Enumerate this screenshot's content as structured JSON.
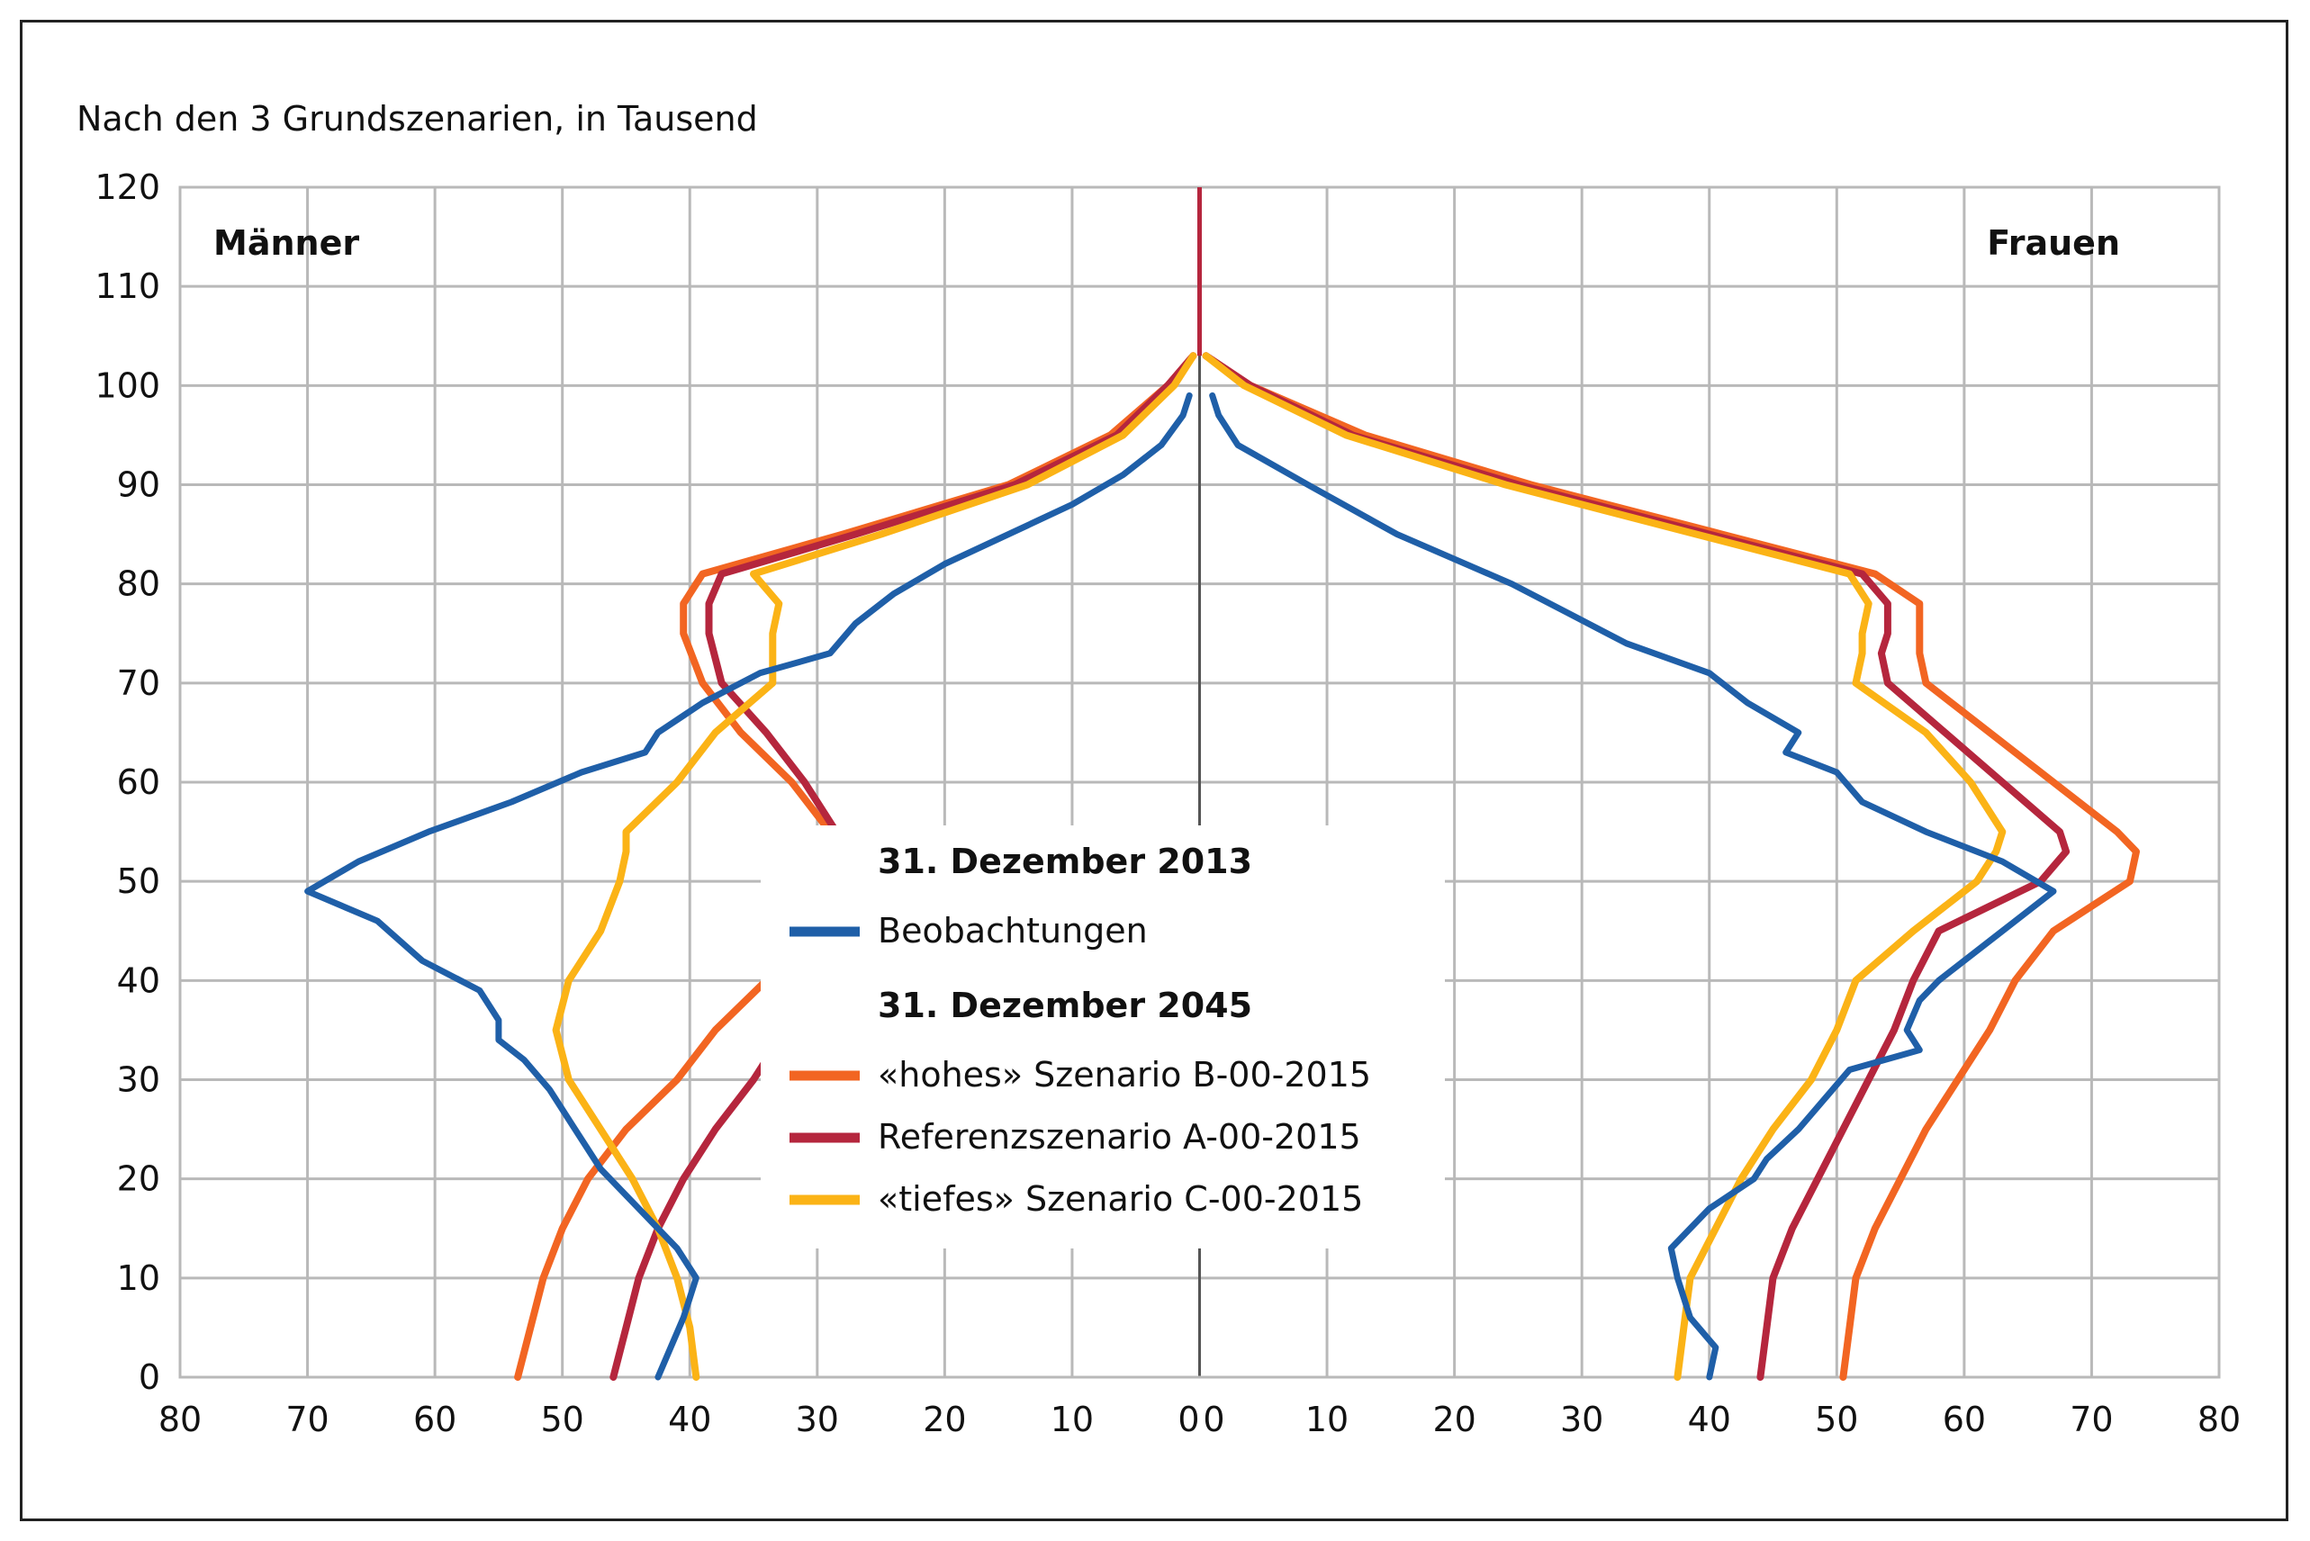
{
  "chart_data": {
    "type": "line",
    "subtitle": "Nach den 3 Grundszenarien, in Tausend",
    "left_label": "Männer",
    "right_label": "Frauen",
    "y_axis": {
      "min": 0,
      "max": 120,
      "step": 10,
      "ticks": [
        0,
        10,
        20,
        30,
        40,
        50,
        60,
        70,
        80,
        90,
        100,
        110,
        120
      ]
    },
    "x_axis": {
      "min": -80,
      "max": 80,
      "step": 10,
      "tick_labels": [
        "80",
        "70",
        "60",
        "50",
        "40",
        "30",
        "20",
        "10",
        "0",
        "0",
        "10",
        "20",
        "30",
        "40",
        "50",
        "60",
        "70",
        "80"
      ]
    },
    "grid": true,
    "legend": {
      "placement": "center",
      "groups": [
        {
          "heading": "31. Dezember 2013",
          "items": [
            {
              "key": "obs",
              "label": "Beobachtungen"
            }
          ]
        },
        {
          "heading": "31. Dezember 2045",
          "items": [
            {
              "key": "high",
              "label": "«hohes» Szenario B-00-2015"
            },
            {
              "key": "ref",
              "label": "Referenzszenario A-00-2015"
            },
            {
              "key": "low",
              "label": "«tiefes» Szenario C-00-2015"
            }
          ]
        }
      ]
    },
    "colors": {
      "obs": "#1f5fa8",
      "high": "#f26522",
      "ref": "#b5263d",
      "low": "#fbb316",
      "grid": "#b9b9b9",
      "axis": "#555555"
    },
    "series": [
      {
        "key": "high",
        "name": "«hohes» Szenario B-00-2015",
        "men": [
          [
            0,
            53.5
          ],
          [
            5,
            52.5
          ],
          [
            10,
            51.5
          ],
          [
            15,
            50
          ],
          [
            20,
            48
          ],
          [
            25,
            45
          ],
          [
            30,
            41
          ],
          [
            35,
            38
          ],
          [
            40,
            34
          ],
          [
            45,
            31
          ],
          [
            50,
            29
          ],
          [
            53,
            28
          ],
          [
            55,
            29
          ],
          [
            60,
            32
          ],
          [
            65,
            36
          ],
          [
            70,
            39
          ],
          [
            75,
            40.5
          ],
          [
            78,
            40.5
          ],
          [
            81,
            39
          ],
          [
            85,
            28
          ],
          [
            90,
            15
          ],
          [
            95,
            7
          ],
          [
            100,
            2.5
          ],
          [
            103,
            0.5
          ]
        ],
        "women": [
          [
            0,
            50.5
          ],
          [
            5,
            51
          ],
          [
            10,
            51.5
          ],
          [
            15,
            53
          ],
          [
            20,
            55
          ],
          [
            25,
            57
          ],
          [
            30,
            59.5
          ],
          [
            35,
            62
          ],
          [
            40,
            64
          ],
          [
            45,
            67
          ],
          [
            50,
            73
          ],
          [
            53,
            73.5
          ],
          [
            55,
            72
          ],
          [
            60,
            67
          ],
          [
            65,
            62
          ],
          [
            70,
            57
          ],
          [
            73,
            56.5
          ],
          [
            75,
            56.5
          ],
          [
            78,
            56.5
          ],
          [
            81,
            53
          ],
          [
            85,
            41
          ],
          [
            90,
            26
          ],
          [
            95,
            13
          ],
          [
            100,
            4
          ],
          [
            103,
            0.5
          ]
        ]
      },
      {
        "key": "ref",
        "name": "Referenzszenario A-00-2015",
        "men": [
          [
            0,
            46
          ],
          [
            5,
            45
          ],
          [
            10,
            44
          ],
          [
            15,
            42.5
          ],
          [
            20,
            40.5
          ],
          [
            25,
            38
          ],
          [
            30,
            35
          ],
          [
            35,
            32.5
          ],
          [
            40,
            30.5
          ],
          [
            45,
            29
          ],
          [
            50,
            28.5
          ],
          [
            53,
            28
          ],
          [
            55,
            28.5
          ],
          [
            60,
            31
          ],
          [
            65,
            34
          ],
          [
            70,
            37.5
          ],
          [
            75,
            38.5
          ],
          [
            78,
            38.5
          ],
          [
            81,
            37.5
          ],
          [
            85,
            27
          ],
          [
            90,
            14.5
          ],
          [
            95,
            6.5
          ],
          [
            100,
            2.5
          ],
          [
            103,
            0.5
          ]
        ],
        "women": [
          [
            0,
            44
          ],
          [
            5,
            44.5
          ],
          [
            10,
            45
          ],
          [
            15,
            46.5
          ],
          [
            20,
            48.5
          ],
          [
            25,
            50.5
          ],
          [
            30,
            52.5
          ],
          [
            35,
            54.5
          ],
          [
            40,
            56
          ],
          [
            45,
            58
          ],
          [
            50,
            66
          ],
          [
            53,
            68
          ],
          [
            55,
            67.5
          ],
          [
            60,
            63
          ],
          [
            65,
            58.5
          ],
          [
            70,
            54
          ],
          [
            73,
            53.5
          ],
          [
            75,
            54
          ],
          [
            78,
            54
          ],
          [
            81,
            52
          ],
          [
            85,
            40
          ],
          [
            90,
            25
          ],
          [
            95,
            12
          ],
          [
            100,
            4
          ],
          [
            103,
            0.5
          ]
        ]
      },
      {
        "key": "low",
        "name": "«tiefes» Szenario C-00-2015",
        "men": [
          [
            0,
            39.5
          ],
          [
            5,
            40
          ],
          [
            10,
            41
          ],
          [
            15,
            42.5
          ],
          [
            20,
            44.5
          ],
          [
            25,
            47
          ],
          [
            30,
            49.5
          ],
          [
            35,
            50.5
          ],
          [
            40,
            49.5
          ],
          [
            45,
            47
          ],
          [
            50,
            45.5
          ],
          [
            53,
            45
          ],
          [
            55,
            45
          ],
          [
            60,
            41
          ],
          [
            65,
            38
          ],
          [
            70,
            33.5
          ],
          [
            75,
            33.5
          ],
          [
            78,
            33
          ],
          [
            81,
            35
          ],
          [
            85,
            25
          ],
          [
            90,
            13.5
          ],
          [
            95,
            6
          ],
          [
            100,
            2
          ],
          [
            103,
            0.5
          ]
        ],
        "women": [
          [
            0,
            37.5
          ],
          [
            5,
            38
          ],
          [
            10,
            38.5
          ],
          [
            15,
            40.5
          ],
          [
            20,
            42.5
          ],
          [
            25,
            45
          ],
          [
            30,
            48
          ],
          [
            35,
            50
          ],
          [
            40,
            51.5
          ],
          [
            45,
            56
          ],
          [
            50,
            61
          ],
          [
            53,
            62.5
          ],
          [
            55,
            63
          ],
          [
            60,
            60.5
          ],
          [
            65,
            57
          ],
          [
            70,
            51.5
          ],
          [
            73,
            52
          ],
          [
            75,
            52
          ],
          [
            78,
            52.5
          ],
          [
            81,
            51
          ],
          [
            85,
            39
          ],
          [
            90,
            24
          ],
          [
            95,
            11.5
          ],
          [
            100,
            3.5
          ],
          [
            103,
            0.5
          ]
        ]
      },
      {
        "key": "obs",
        "name": "Beobachtungen",
        "men": [
          [
            0,
            42.5
          ],
          [
            3,
            41.5
          ],
          [
            6,
            40.5
          ],
          [
            10,
            39.5
          ],
          [
            13,
            41
          ],
          [
            17,
            44
          ],
          [
            21,
            47
          ],
          [
            25,
            49
          ],
          [
            29,
            51
          ],
          [
            32,
            53
          ],
          [
            34,
            55
          ],
          [
            36,
            55
          ],
          [
            39,
            56.5
          ],
          [
            42,
            61
          ],
          [
            46,
            64.5
          ],
          [
            49,
            70
          ],
          [
            52,
            66
          ],
          [
            55,
            60.5
          ],
          [
            58,
            54
          ],
          [
            61,
            48.5
          ],
          [
            63,
            43.5
          ],
          [
            65,
            42.5
          ],
          [
            68,
            39
          ],
          [
            71,
            34.5
          ],
          [
            73,
            29
          ],
          [
            76,
            27
          ],
          [
            79,
            24
          ],
          [
            82,
            20
          ],
          [
            85,
            15
          ],
          [
            88,
            10
          ],
          [
            91,
            6
          ],
          [
            94,
            3
          ],
          [
            97,
            1.3
          ],
          [
            99,
            0.8
          ]
        ],
        "women": [
          [
            0,
            40
          ],
          [
            3,
            40.5
          ],
          [
            6,
            38.5
          ],
          [
            10,
            37.5
          ],
          [
            13,
            37
          ],
          [
            17,
            40
          ],
          [
            20,
            43.5
          ],
          [
            22,
            44.5
          ],
          [
            25,
            47
          ],
          [
            28,
            49
          ],
          [
            31,
            51
          ],
          [
            33,
            56.5
          ],
          [
            35,
            55.5
          ],
          [
            38,
            56.5
          ],
          [
            40,
            58
          ],
          [
            45,
            63
          ],
          [
            49,
            67
          ],
          [
            52,
            63
          ],
          [
            55,
            57
          ],
          [
            58,
            52
          ],
          [
            61,
            50
          ],
          [
            63,
            46
          ],
          [
            65,
            47
          ],
          [
            68,
            43
          ],
          [
            71,
            40
          ],
          [
            74,
            33.5
          ],
          [
            77,
            29
          ],
          [
            80,
            24.5
          ],
          [
            85,
            15.5
          ],
          [
            90,
            8.5
          ],
          [
            94,
            3
          ],
          [
            97,
            1.5
          ],
          [
            99,
            1
          ]
        ]
      }
    ]
  }
}
